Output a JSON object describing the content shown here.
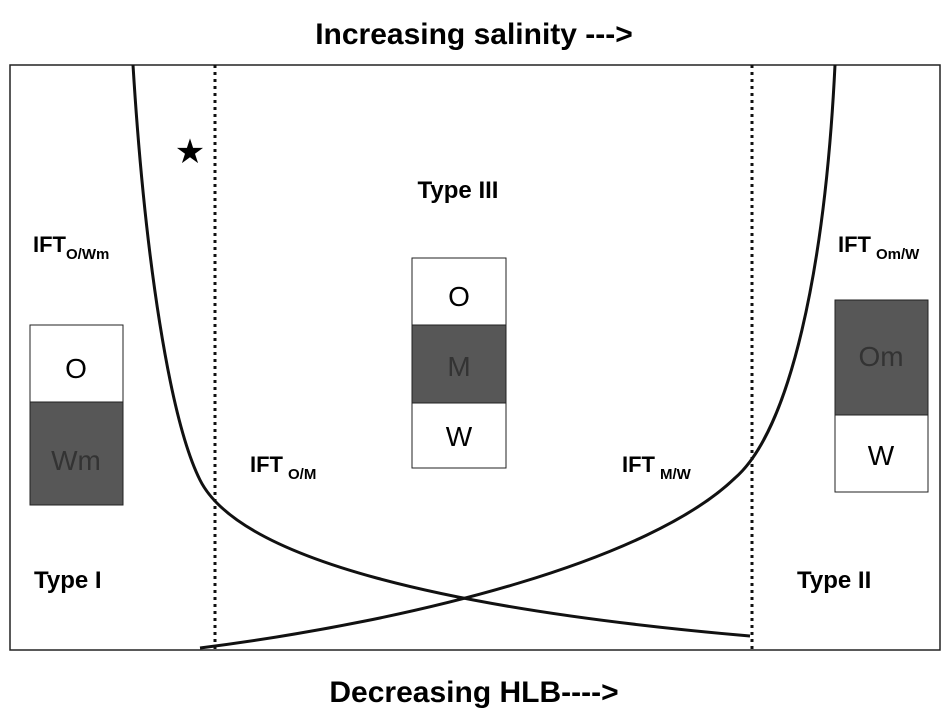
{
  "title": "Increasing salinity --->",
  "footer": "Decreasing HLB---->",
  "marker": "★",
  "regions": [
    "Type I",
    "Type III",
    "Type II"
  ],
  "interfaces": [
    {
      "main": "IFT",
      "sub": "O/Wm"
    },
    {
      "main": "IFT",
      "sub": "O/M"
    },
    {
      "main": "IFT",
      "sub": "M/W"
    },
    {
      "main": "IFT",
      "sub": "Om/W"
    }
  ],
  "boxes": [
    {
      "layers": [
        "O",
        "Wm"
      ]
    },
    {
      "layers": [
        "O",
        "M",
        "W"
      ]
    },
    {
      "layers": [
        "Om",
        "W"
      ]
    }
  ]
}
